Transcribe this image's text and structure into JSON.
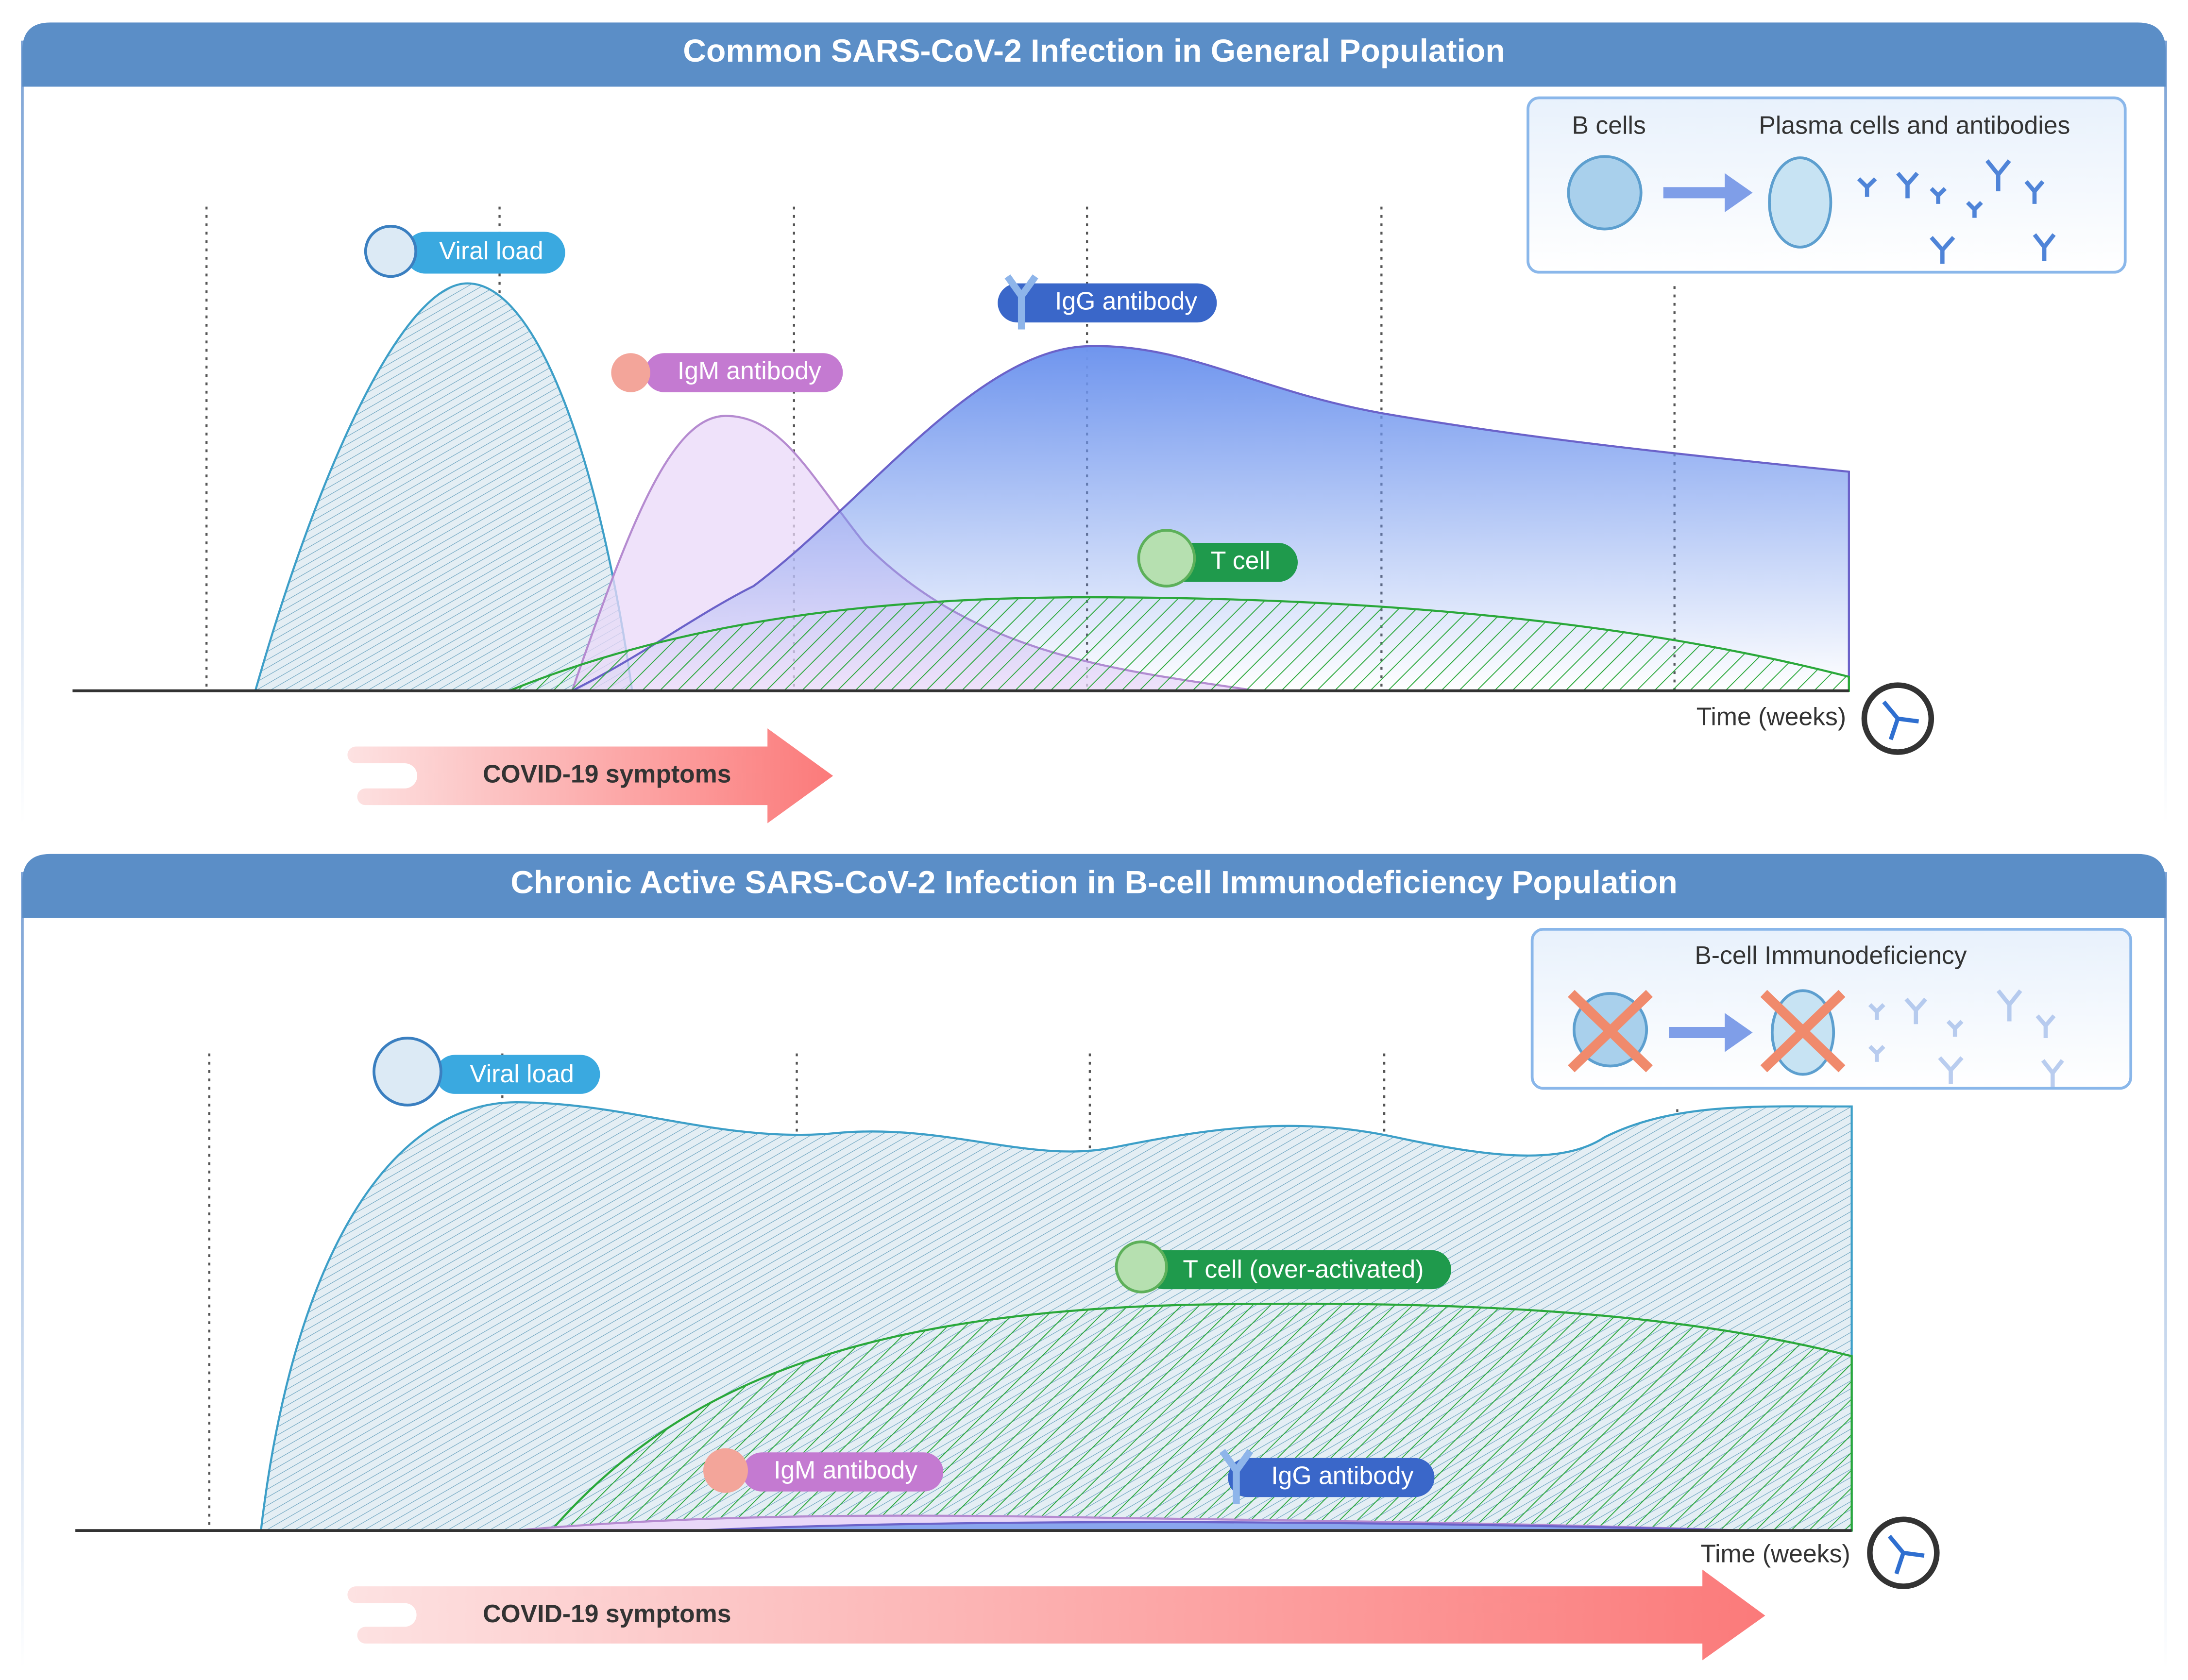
{
  "panels": [
    {
      "title": "Common SARS-CoV-2 Infection in General Population",
      "inset": {
        "labels": [
          "B cells",
          "Plasma cells and antibodies"
        ]
      },
      "curve_labels": [
        "Viral load",
        "IgM antibody",
        "IgG antibody",
        "T cell"
      ],
      "axis_label": "Time (weeks)",
      "symptoms": "COVID-19 symptoms"
    },
    {
      "title": "Chronic Active SARS-CoV-2 Infection in B-cell Immunodeficiency Population",
      "inset": {
        "labels": [
          "B-cell Immunodeficiency"
        ]
      },
      "curve_labels": [
        "Viral load",
        "T cell (over-activated)",
        "IgM antibody",
        "IgG antibody"
      ],
      "axis_label": "Time (weeks)",
      "symptoms": "COVID-19 symptoms"
    }
  ]
}
